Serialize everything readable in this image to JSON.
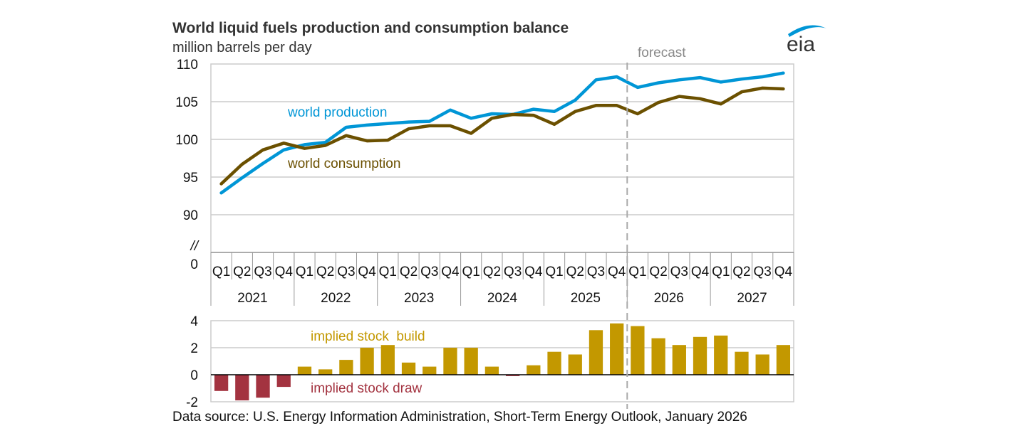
{
  "header": {
    "title": "World liquid fuels production and consumption balance",
    "subtitle": "million barrels per day",
    "logo_text": "eia"
  },
  "source": "Data source: U.S. Energy Information Administration, Short-Term Energy Outlook, January 2026",
  "colors": {
    "production": "#0096d6",
    "consumption": "#6b5000",
    "build": "#c39800",
    "draw": "#a33340",
    "grid": "#cccccc",
    "forecast_line": "#aaaaaa"
  },
  "chart_data": [
    {
      "type": "line",
      "title": "World liquid fuels production and consumption balance",
      "ylabel": "million barrels per day",
      "ylim": [
        90,
        110
      ],
      "yticks": [
        "110",
        "105",
        "100",
        "95",
        "90"
      ],
      "axis_break": {
        "symbol": "//",
        "zero_label": "0"
      },
      "quarters": [
        "Q1",
        "Q2",
        "Q3",
        "Q4",
        "Q1",
        "Q2",
        "Q3",
        "Q4",
        "Q1",
        "Q2",
        "Q3",
        "Q4",
        "Q1",
        "Q2",
        "Q3",
        "Q4",
        "Q1",
        "Q2",
        "Q3",
        "Q4",
        "Q1",
        "Q2",
        "Q3",
        "Q4",
        "Q1",
        "Q2",
        "Q3",
        "Q4"
      ],
      "years": [
        "2021",
        "2022",
        "2023",
        "2024",
        "2025",
        "2026",
        "2027"
      ],
      "forecast_label": "forecast",
      "forecast_start_index": 20,
      "grid": true,
      "series": [
        {
          "name": "world production",
          "values": [
            92.9,
            94.9,
            96.8,
            98.6,
            99.3,
            99.6,
            101.6,
            101.9,
            102.1,
            102.3,
            102.4,
            103.9,
            102.8,
            103.4,
            103.3,
            104.0,
            103.7,
            105.2,
            107.9,
            108.3,
            106.9,
            107.5,
            107.9,
            108.2,
            107.6,
            108.0,
            108.3,
            108.8
          ]
        },
        {
          "name": "world consumption",
          "values": [
            94.1,
            96.7,
            98.6,
            99.5,
            98.8,
            99.2,
            100.5,
            99.8,
            99.9,
            101.4,
            101.8,
            101.8,
            100.8,
            102.8,
            103.3,
            103.2,
            102.0,
            103.7,
            104.5,
            104.5,
            103.4,
            104.9,
            105.7,
            105.4,
            104.7,
            106.3,
            106.8,
            106.7
          ]
        }
      ]
    },
    {
      "type": "bar",
      "title": "implied stock balance",
      "ylabel": "million barrels per day",
      "ylim": [
        -2,
        4
      ],
      "yticks": [
        "4",
        "2",
        "0",
        "-2"
      ],
      "grid": true,
      "annotations": [
        "implied stock  build",
        "implied stock draw"
      ],
      "values": [
        -1.2,
        -1.9,
        -1.7,
        -0.9,
        0.6,
        0.4,
        1.1,
        2.0,
        2.2,
        0.9,
        0.6,
        2.0,
        2.0,
        0.6,
        -0.1,
        0.7,
        1.7,
        1.5,
        3.3,
        3.8,
        3.6,
        2.7,
        2.2,
        2.8,
        2.9,
        1.7,
        1.5,
        2.2
      ]
    }
  ]
}
